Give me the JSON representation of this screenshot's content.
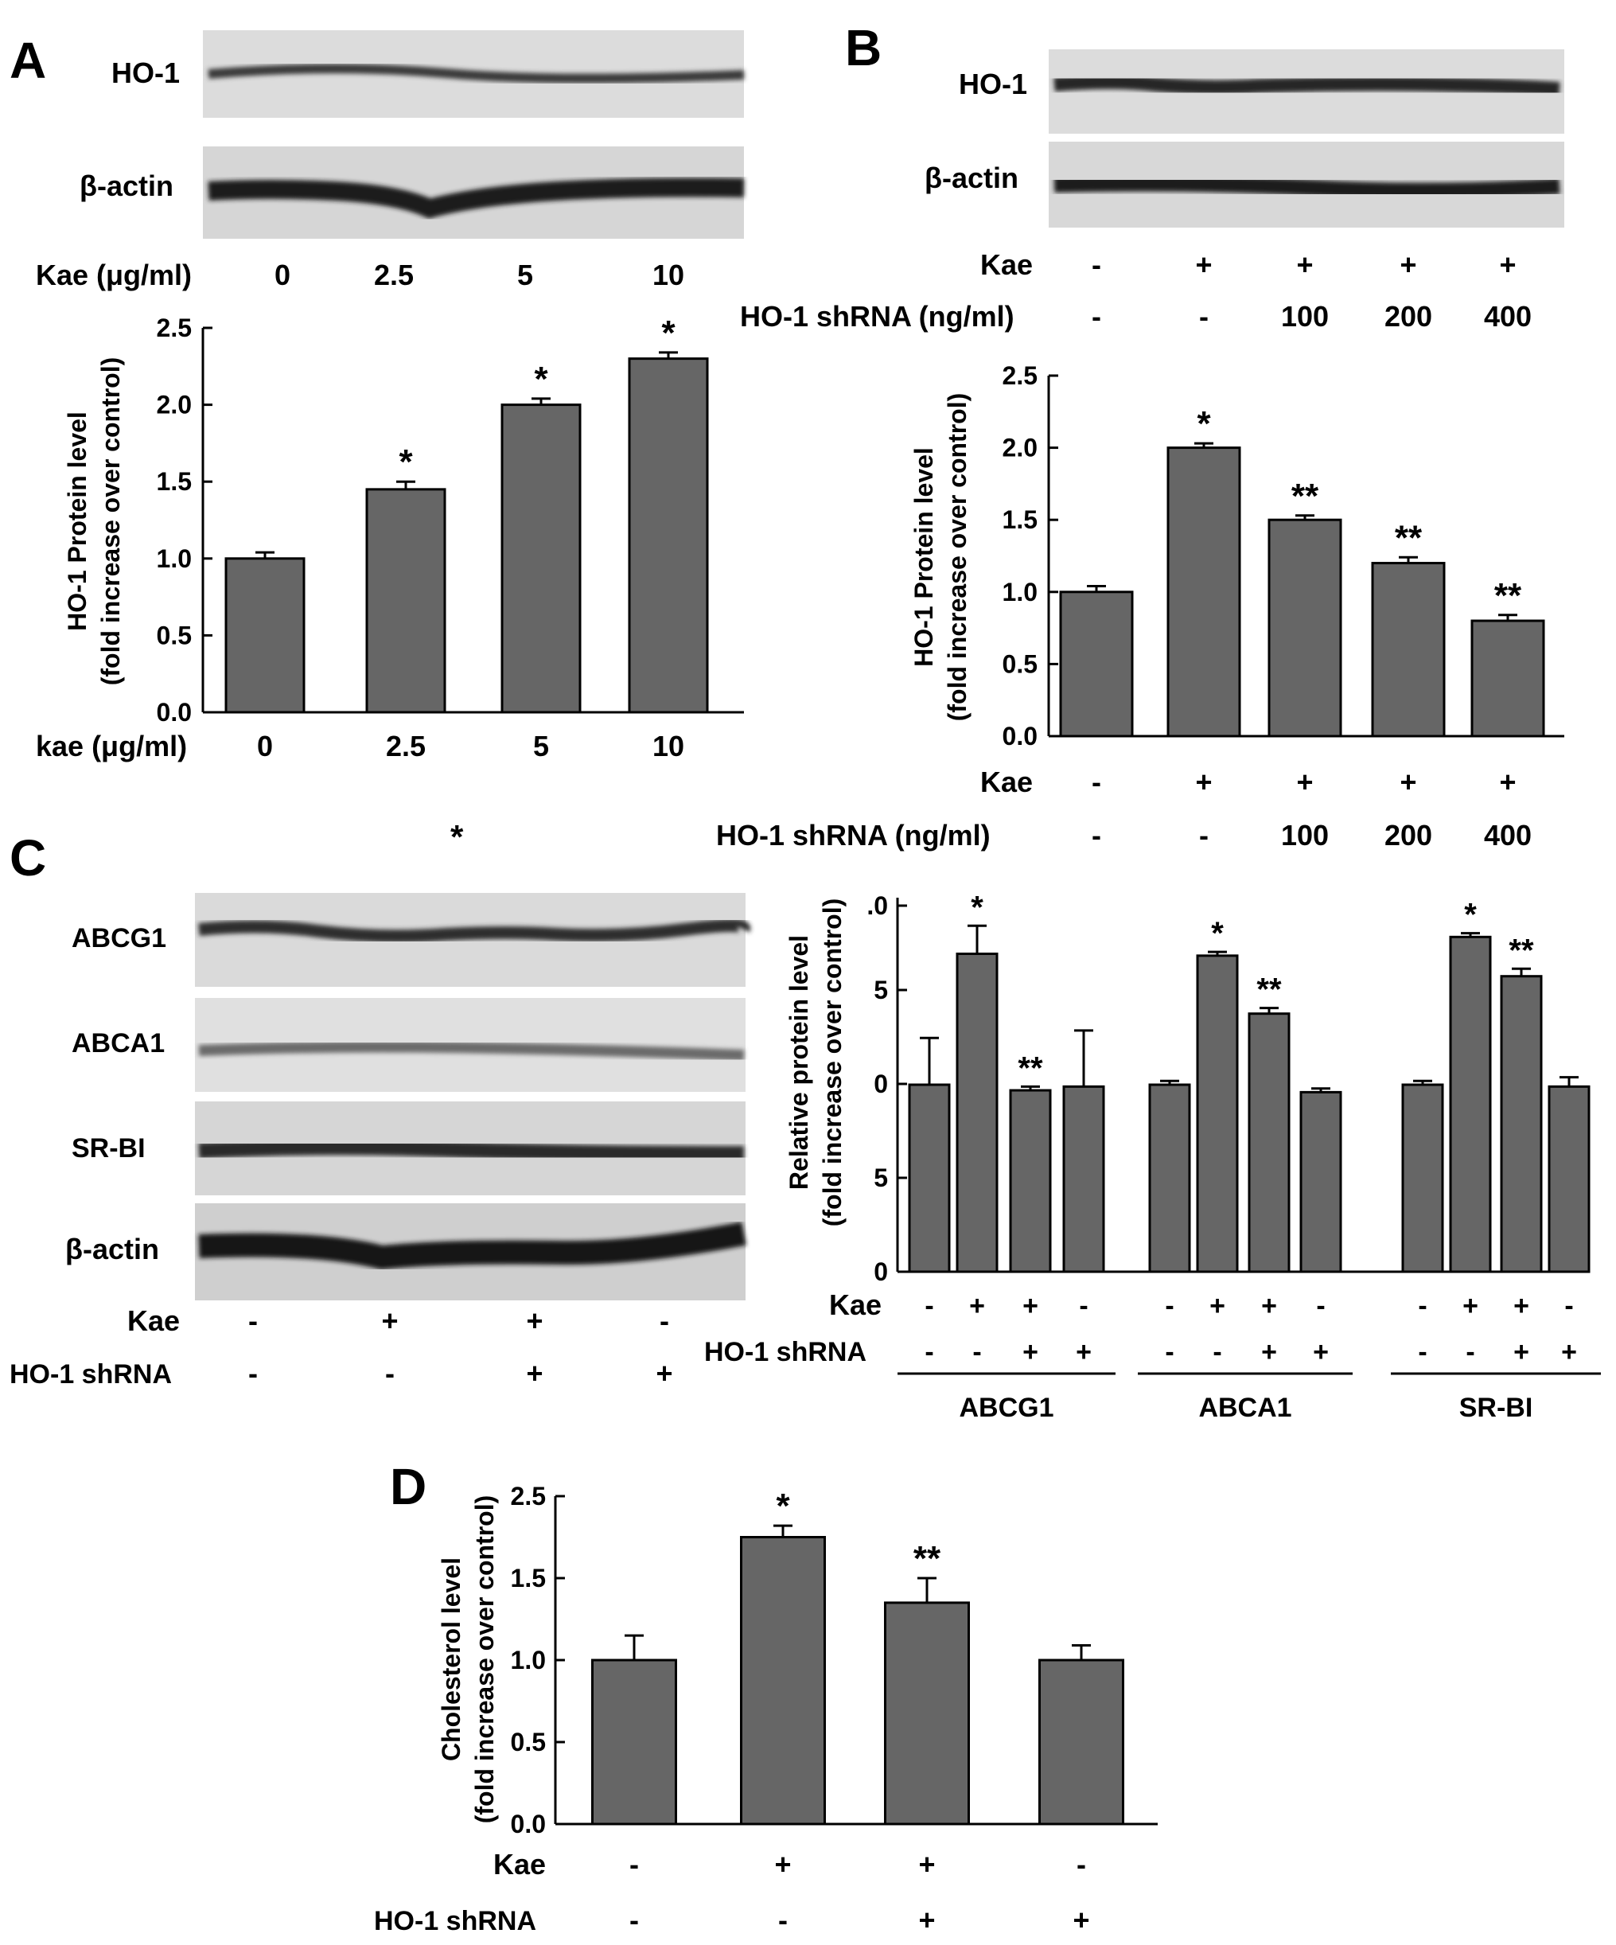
{
  "panels": {
    "A": {
      "letter": "A",
      "blot_labels": [
        "HO-1",
        "β-actin"
      ],
      "kae_label": "Kae (μg/ml)",
      "kae_values": [
        "0",
        "2.5",
        "5",
        "10"
      ]
    },
    "B": {
      "letter": "B",
      "blot_labels": [
        "HO-1",
        "β-actin"
      ],
      "kae_label": "Kae",
      "kae_values": [
        "-",
        "+",
        "+",
        "+",
        "+"
      ],
      "shrna_label": "HO-1 shRNA (ng/ml)",
      "shrna_values": [
        "-",
        "-",
        "100",
        "200",
        "400"
      ]
    },
    "C": {
      "letter": "C",
      "stray_mark": "*",
      "blot_labels": [
        "ABCG1",
        "ABCA1",
        "SR-BI",
        "β-actin"
      ],
      "kae_label": "Kae",
      "kae_values": [
        "-",
        "+",
        "+",
        "-"
      ],
      "shrna_label": "HO-1 shRNA",
      "shrna_values": [
        "-",
        "-",
        "+",
        "+"
      ]
    },
    "D": {
      "letter": "D"
    }
  },
  "colors": {
    "bar_fill": "#666666",
    "blot_bg": "#dcdcdc",
    "band": "#2a2a2a",
    "axis": "#000000"
  },
  "chart_data": [
    {
      "id": "A",
      "type": "bar",
      "categories": [
        "0",
        "2.5",
        "5",
        "10"
      ],
      "values": [
        1.0,
        1.45,
        2.0,
        2.3
      ],
      "errors": [
        0.04,
        0.05,
        0.04,
        0.04
      ],
      "annotations": [
        "",
        "*",
        "*",
        "*"
      ],
      "ylabel": [
        "HO-1 Protein level",
        "(fold increase over control)"
      ],
      "xlabel": "kae (μg/ml)",
      "ylim": [
        0,
        2.5
      ],
      "yticks": [
        "0.0",
        "0.5",
        "1.0",
        "1.5",
        "2.0",
        "2.5"
      ]
    },
    {
      "id": "B",
      "type": "bar",
      "values": [
        1.0,
        2.0,
        1.5,
        1.2,
        0.8
      ],
      "errors": [
        0.04,
        0.03,
        0.03,
        0.04,
        0.04
      ],
      "annotations": [
        "",
        "*",
        "**",
        "**",
        "**"
      ],
      "ylabel": [
        "HO-1 Protein level",
        "(fold increase over control)"
      ],
      "ylim": [
        0,
        2.5
      ],
      "yticks": [
        "0.0",
        "0.5",
        "1.0",
        "1.5",
        "2.0",
        "2.5"
      ],
      "rows": [
        {
          "label": "Kae",
          "values": [
            "-",
            "+",
            "+",
            "+",
            "+"
          ]
        },
        {
          "label": "HO-1 shRNA (ng/ml)",
          "values": [
            "-",
            "-",
            "100",
            "200",
            "400"
          ]
        }
      ]
    },
    {
      "id": "C",
      "type": "bar",
      "ylabel": [
        "Relative protein level",
        "(fold increase over control)"
      ],
      "ylim": [
        0,
        2.0
      ],
      "yticks": [
        "0",
        "5",
        "0",
        "5",
        ".0"
      ],
      "rows": [
        {
          "label": "Kae",
          "values": [
            "-",
            "+",
            "+",
            "-"
          ]
        },
        {
          "label": "HO-1 shRNA",
          "values": [
            "-",
            "-",
            "+",
            "+"
          ]
        }
      ],
      "series": [
        {
          "name": "ABCG1",
          "values": [
            1.0,
            1.7,
            0.97,
            0.99
          ],
          "errors": [
            0.25,
            0.15,
            0.02,
            0.3
          ],
          "annotations": [
            "",
            "*",
            "**",
            ""
          ]
        },
        {
          "name": "ABCA1",
          "values": [
            1.0,
            1.69,
            1.38,
            0.96
          ],
          "errors": [
            0.02,
            0.02,
            0.03,
            0.02
          ],
          "annotations": [
            "",
            "*",
            "**",
            ""
          ]
        },
        {
          "name": "SR-BI",
          "values": [
            1.0,
            1.79,
            1.58,
            0.99
          ],
          "errors": [
            0.02,
            0.02,
            0.04,
            0.05
          ],
          "annotations": [
            "",
            "*",
            "**",
            ""
          ]
        }
      ]
    },
    {
      "id": "D",
      "type": "bar",
      "values": [
        1.0,
        1.75,
        1.35,
        1.0
      ],
      "errors": [
        0.15,
        0.07,
        0.15,
        0.09
      ],
      "annotations": [
        "",
        "*",
        "**",
        ""
      ],
      "ylabel": [
        "Cholesterol level",
        "(fold increase over control)"
      ],
      "ylim": [
        0,
        2.0
      ],
      "yticks": [
        "0.0",
        "0.5",
        "1.0",
        "1.5",
        "2.5"
      ],
      "rows": [
        {
          "label": "Kae",
          "values": [
            "-",
            "+",
            "+",
            "-"
          ]
        },
        {
          "label": "HO-1 shRNA",
          "values": [
            "-",
            "-",
            "+",
            "+"
          ]
        }
      ]
    }
  ]
}
